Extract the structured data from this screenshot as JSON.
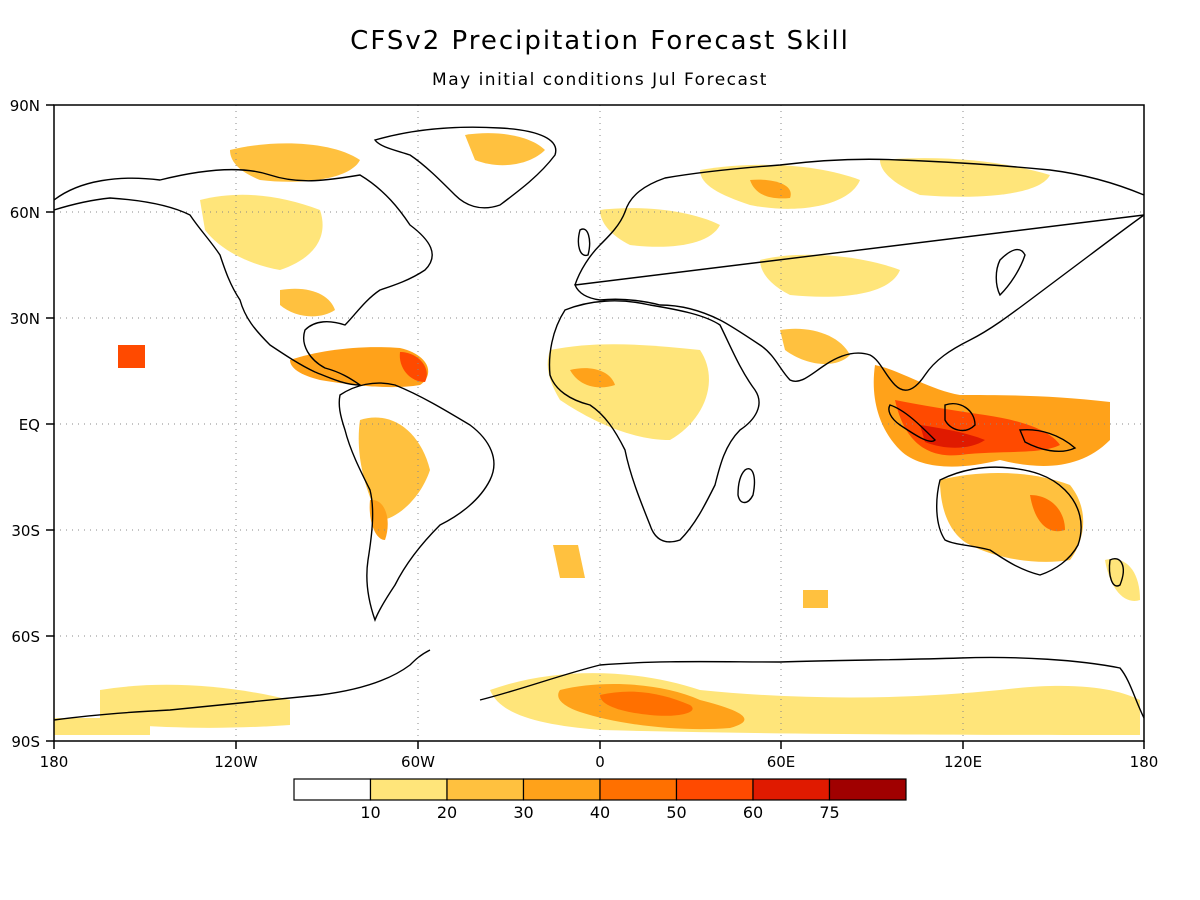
{
  "title": "CFSv2 Precipitation Forecast Skill",
  "subtitle": "May initial conditions   Jul Forecast",
  "map": {
    "lon_range": [
      -180,
      180
    ],
    "lat_range": [
      -90,
      90
    ],
    "lat_ticks": [
      "90N",
      "60N",
      "30N",
      "EQ",
      "30S",
      "60S",
      "90S"
    ],
    "lon_ticks": [
      "180",
      "120W",
      "60W",
      "0",
      "60E",
      "120E",
      "180"
    ],
    "gridlines": "dotted"
  },
  "colorbar": {
    "colors": [
      "#ffffff",
      "#ffe57a",
      "#ffc13f",
      "#ffa21a",
      "#ff7000",
      "#ff4a00",
      "#e01a00",
      "#a00000"
    ],
    "labels": [
      "10",
      "20",
      "30",
      "40",
      "50",
      "60",
      "75"
    ]
  }
}
